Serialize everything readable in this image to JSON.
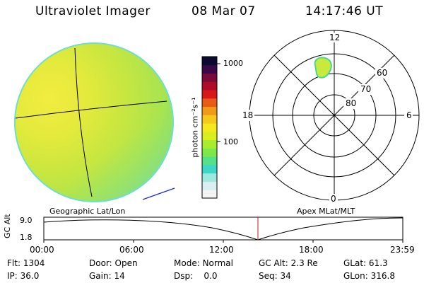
{
  "header": {
    "instrument": "Ultraviolet Imager",
    "date": "08 Mar 07",
    "time": "14:17:46 UT"
  },
  "colorbar": {
    "unit_label": "photon cm⁻²s⁻¹",
    "tick_1000": "1000",
    "tick_100": "100",
    "colors": [
      "#f4f4f4",
      "#d8eef0",
      "#9ee8e0",
      "#3fd6c8",
      "#55e08a",
      "#7ee84a",
      "#a8ec30",
      "#d8ee20",
      "#f6e81c",
      "#f6c81c",
      "#f09a1a",
      "#e85a18",
      "#d81818",
      "#b00a2a",
      "#7a0a3a",
      "#3a0848",
      "#0a0a30"
    ]
  },
  "polar": {
    "label_12": "12",
    "label_18": "18",
    "label_6": "6",
    "label_0": "0",
    "ring_60": "60",
    "ring_70": "70",
    "ring_80": "80"
  },
  "timeline": {
    "left_title": "Geographic Lat/Lon",
    "right_title": "Apex MLat/MLT",
    "axis_title": "GC Alt",
    "y_top": "9.0",
    "y_bottom": "1.8",
    "ticks": [
      "00:00",
      "06:00",
      "12:00",
      "18:00",
      "23:59"
    ]
  },
  "status": {
    "row1": [
      {
        "label": "Flt:",
        "value": "1304"
      },
      {
        "label": "Door:",
        "value": "Open"
      },
      {
        "label": "Mode:",
        "value": "Normal"
      },
      {
        "label": "GC Alt:",
        "value": "2.3 Re"
      },
      {
        "label": "GLat:",
        "value": "61.3"
      }
    ],
    "row2": [
      {
        "label": "IP:",
        "value": "36.0"
      },
      {
        "label": "Gain:",
        "value": "14"
      },
      {
        "label": "Dsp:",
        "value": "0.0"
      },
      {
        "label": "Seq:",
        "value": "34"
      },
      {
        "label": "GLon:",
        "value": "316.8"
      }
    ]
  },
  "accent": {
    "globe_base": "#cfe84a",
    "limb": "#6ee0c8",
    "sun_vector": "#1a2ae0",
    "time_marker": "#c01818"
  }
}
